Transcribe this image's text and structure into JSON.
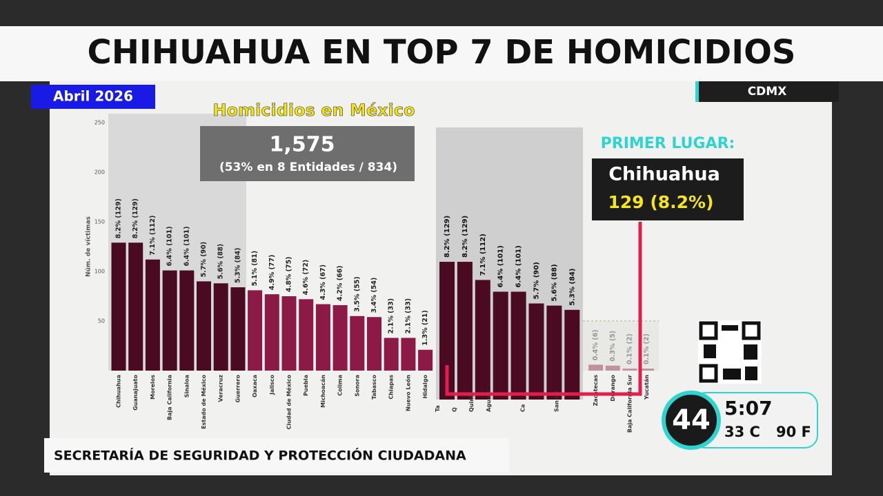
{
  "broadcast": {
    "headline": "CHIHUAHUA EN TOP 7 DE HOMICIDIOS",
    "date": "Abril 2026",
    "location": "CDMX",
    "source": "SECRETARÍA DE SEGURIDAD Y PROTECCIÓN CIUDADANA",
    "time": "5:07",
    "temp_c": "33 C",
    "temp_f": "90 F",
    "logo": "44"
  },
  "summary": {
    "title": "Homicidios en México",
    "total": "1,575",
    "note": "(53% en 8 Entidades / 834)",
    "first_place_label": "PRIMER LUGAR:",
    "first_place_state": "Chihuahua",
    "first_place_value": "129 (8.2%)"
  },
  "chart_data": [
    {
      "type": "bar",
      "y_label": "Núm. de víctimas",
      "ylim": [
        0,
        250
      ],
      "yticks": [
        50,
        100,
        150,
        200,
        250
      ],
      "grid": false,
      "colors": {
        "top": "#4a0b22",
        "rest": "#8c1a47"
      },
      "top_count": 8,
      "categories": [
        "Chihuahua",
        "Guanajuato",
        "Morelos",
        "Baja California",
        "Sinaloa",
        "Estado de México",
        "Veracruz",
        "Guerrero",
        "Oaxaca",
        "Jalisco",
        "Ciudad de México",
        "Puebla",
        "Michoacán",
        "Colima",
        "Sonora",
        "Tabasco",
        "Chiapas",
        "Nuevo León",
        "Hidalgo",
        "Ta",
        "Q",
        "Quint",
        "Aguasc",
        null,
        "Ca",
        null,
        "San Lu",
        null,
        "Zacatecas",
        "Durango",
        "Baja California Sur",
        "Yucatán"
      ],
      "values": [
        129,
        129,
        112,
        101,
        101,
        90,
        88,
        84,
        81,
        77,
        75,
        72,
        67,
        66,
        55,
        54,
        33,
        33,
        21,
        null,
        null,
        null,
        null,
        null,
        null,
        null,
        null,
        null,
        6,
        5,
        2,
        2
      ],
      "value_labels": [
        "8.2% (129)",
        "8.2% (129)",
        "7.1% (112)",
        "6.4% (101)",
        "6.4% (101)",
        "5.7% (90)",
        "5.6% (88)",
        "5.3% (84)",
        "5.1% (81)",
        "4.9% (77)",
        "4.8% (75)",
        "4.6% (72)",
        "4.3% (67)",
        "4.2% (66)",
        "3.5% (55)",
        "3.4% (54)",
        "2.1% (33)",
        "2.1% (33)",
        "1.3% (21)",
        null,
        null,
        null,
        null,
        null,
        null,
        null,
        null,
        null,
        "0.4% (6)",
        "0.3% (5)",
        "0.1% (2)",
        "0.1% (2)"
      ]
    },
    {
      "type": "bar",
      "color": "#4a0b22",
      "values": [
        129,
        129,
        112,
        101,
        101,
        90,
        88,
        84
      ],
      "value_labels": [
        "8.2% (129)",
        "8.2% (129)",
        "7.1% (112)",
        "6.4% (101)",
        "6.4% (101)",
        "5.7% (90)",
        "5.6% (88)",
        "5.3% (84)"
      ]
    }
  ]
}
